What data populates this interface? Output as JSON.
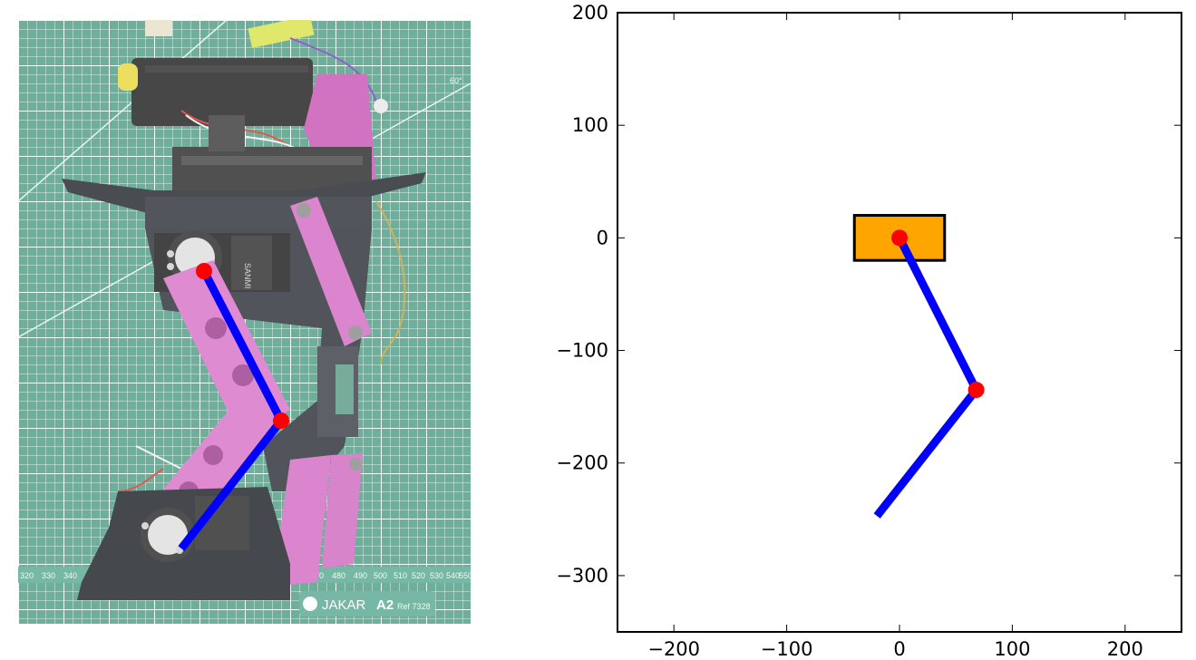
{
  "photo": {
    "description_icon": "robot-leg-photo",
    "mat_color": "#3a8c74",
    "overlay_color": "#ffffff",
    "ruler_labels": [
      "320",
      "330",
      "340",
      "470",
      "480",
      "490",
      "500",
      "510",
      "520",
      "530",
      "540",
      "550"
    ],
    "brand_text": "JAKAR",
    "brand_model": "A2",
    "brand_ref": "Ref 7328",
    "corner_mark": "60°",
    "servo_text": "SANMI",
    "leg_overlay": {
      "hip": [
        205,
        277
      ],
      "knee": [
        290,
        442
      ],
      "foot": [
        180,
        583
      ]
    },
    "colors": {
      "link": "#0000ff",
      "joint": "#ff0000"
    }
  },
  "chart_data": {
    "type": "line",
    "title": "",
    "xlabel": "",
    "ylabel": "",
    "xlim": [
      -250,
      250
    ],
    "ylim": [
      -350,
      200
    ],
    "xticks": [
      -200,
      -100,
      0,
      100,
      200
    ],
    "yticks": [
      200,
      100,
      0,
      -100,
      -200,
      -300
    ],
    "tick_labels_x": [
      "−200",
      "−100",
      "0",
      "100",
      "200"
    ],
    "tick_labels_y": [
      "200",
      "100",
      "0",
      "−100",
      "−200",
      "−300"
    ],
    "grid": false,
    "body_rect": {
      "x": [
        -40,
        40
      ],
      "y": [
        -20,
        20
      ],
      "fill": "#ffa500",
      "edge": "#000000"
    },
    "leg_points": [
      {
        "x": 0,
        "y": 0
      },
      {
        "x": 68,
        "y": -135
      },
      {
        "x": -20,
        "y": -247
      }
    ],
    "joints": [
      {
        "x": 0,
        "y": 0
      },
      {
        "x": 68,
        "y": -135
      }
    ],
    "colors": {
      "link": "#0000ff",
      "joint": "#ff0000"
    }
  }
}
